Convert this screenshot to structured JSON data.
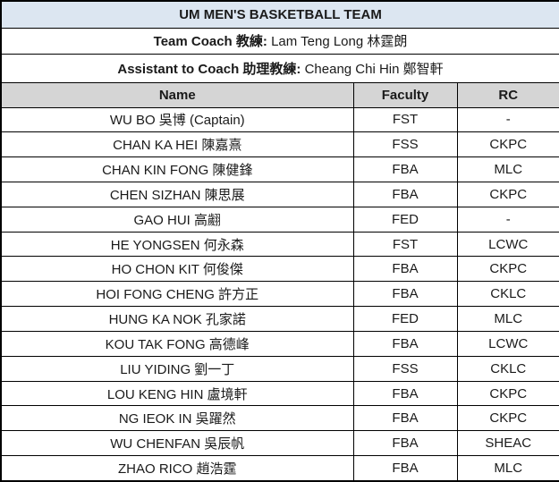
{
  "title": "UM MEN'S BASKETBALL TEAM",
  "coach": {
    "label": "Team Coach 教練:",
    "value": "Lam Teng Long 林霆朗"
  },
  "assistant": {
    "label": "Assistant to Coach 助理教練:",
    "value": "Cheang Chi Hin 鄭智軒"
  },
  "table": {
    "columns": [
      "Name",
      "Faculty",
      "RC"
    ],
    "rows": [
      {
        "name": "WU BO 吳博 (Captain)",
        "faculty": "FST",
        "rc": "-"
      },
      {
        "name": "CHAN KA HEI 陳嘉熹",
        "faculty": "FSS",
        "rc": "CKPC"
      },
      {
        "name": "CHAN KIN FONG 陳健鋒",
        "faculty": "FBA",
        "rc": "MLC"
      },
      {
        "name": "CHEN SIZHAN 陳思展",
        "faculty": "FBA",
        "rc": "CKPC"
      },
      {
        "name": "GAO HUI 高翽",
        "faculty": "FED",
        "rc": "-"
      },
      {
        "name": "HE YONGSEN 何永森",
        "faculty": "FST",
        "rc": "LCWC"
      },
      {
        "name": "HO CHON KIT 何俊傑",
        "faculty": "FBA",
        "rc": "CKPC"
      },
      {
        "name": "HOI FONG CHENG 許方正",
        "faculty": "FBA",
        "rc": "CKLC"
      },
      {
        "name": "HUNG KA NOK 孔家諾",
        "faculty": "FED",
        "rc": "MLC"
      },
      {
        "name": "KOU TAK FONG 高德峰",
        "faculty": "FBA",
        "rc": "LCWC"
      },
      {
        "name": "LIU YIDING 劉一丁",
        "faculty": "FSS",
        "rc": "CKLC"
      },
      {
        "name": "LOU KENG HIN 盧境軒",
        "faculty": "FBA",
        "rc": "CKPC"
      },
      {
        "name": "NG IEOK IN 吳躍然",
        "faculty": "FBA",
        "rc": "CKPC"
      },
      {
        "name": "WU CHENFAN 吳辰帆",
        "faculty": "FBA",
        "rc": "SHEAC"
      },
      {
        "name": "ZHAO RICO 趙浩霆",
        "faculty": "FBA",
        "rc": "MLC"
      }
    ]
  },
  "colors": {
    "title_bg": "#dce6f1",
    "header_bg": "#d5d5d5",
    "border": "#000000",
    "text": "#1a1a1a"
  }
}
